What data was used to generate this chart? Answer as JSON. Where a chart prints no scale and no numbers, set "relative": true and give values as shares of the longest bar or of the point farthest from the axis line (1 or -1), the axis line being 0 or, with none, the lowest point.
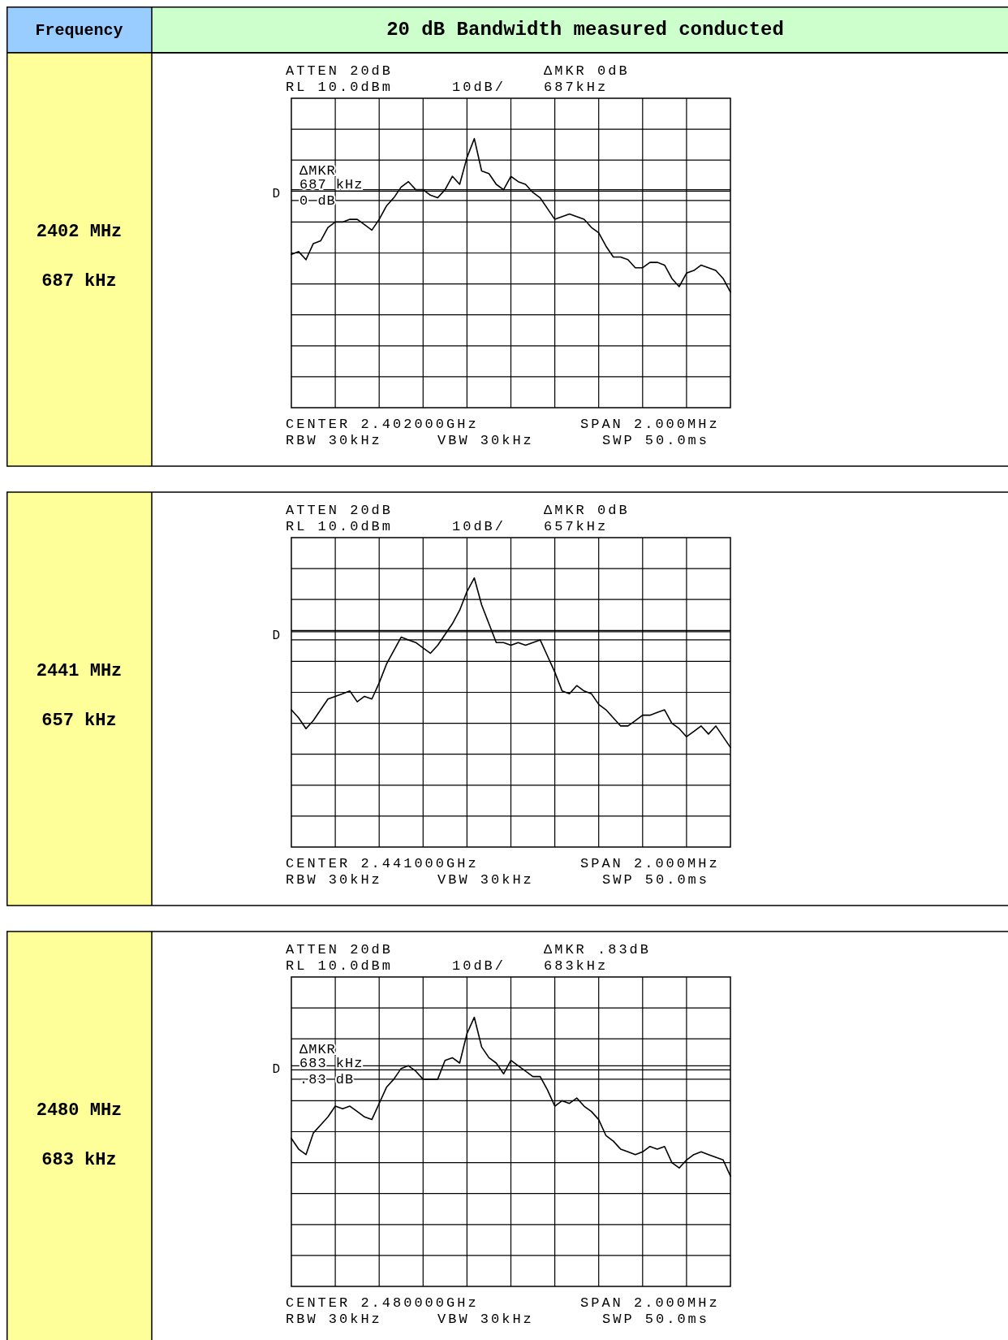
{
  "chart_data": [
    {
      "type": "line",
      "relative": true,
      "grid": true,
      "categories": [
        null,
        null,
        null,
        null,
        null,
        null,
        null,
        null,
        null,
        null,
        null,
        null,
        null,
        null,
        null,
        null,
        null,
        null,
        null,
        null,
        null,
        null,
        null,
        null,
        null,
        null,
        null,
        null,
        null,
        null,
        null,
        null,
        null,
        null,
        null,
        null,
        null,
        null,
        null,
        null,
        null,
        null,
        null,
        null,
        null,
        null,
        null,
        null,
        null,
        null,
        null,
        null,
        null,
        null,
        null,
        null,
        null,
        null,
        null,
        null,
        null
      ],
      "series": [
        {
          "color": "#000000",
          "values": [
            0.57,
            0.58,
            0.55,
            0.61,
            0.62,
            0.67,
            0.69,
            0.69,
            0.7,
            0.7,
            0.68,
            0.66,
            0.7,
            0.75,
            0.78,
            0.82,
            0.84,
            0.81,
            0.81,
            0.79,
            0.78,
            0.81,
            0.86,
            0.83,
            0.93,
            1,
            0.88,
            0.87,
            0.83,
            0.81,
            0.86,
            0.84,
            0.83,
            0.8,
            0.78,
            0.74,
            0.7,
            0.71,
            0.72,
            0.71,
            0.7,
            0.67,
            0.65,
            0.6,
            0.56,
            0.56,
            0.55,
            0.52,
            0.52,
            0.54,
            0.54,
            0.53,
            0.48,
            0.45,
            0.5,
            0.51,
            0.53,
            0.52,
            0.51,
            0.48,
            0.43
          ]
        }
      ],
      "ref_lines": [
        {
          "axis": "y",
          "value": 0.81,
          "label": "D"
        },
        {
          "axis": "y",
          "value": 0.77
        }
      ],
      "annotations": [
        "Frequency",
        "20 dB Bandwidth measured conducted",
        "2402 MHz",
        "687 kHz",
        "ATTEN 20dB",
        "ΔMKR 0dB",
        "RL 10.0dBm",
        "10dB/",
        "687kHz",
        "CENTER 2.402000GHz",
        "SPAN 2.000MHz",
        "RBW 30kHz",
        "VBW 30kHz",
        "SWP 50.0ms",
        "ΔMKR",
        "687 kHz",
        "0 dB"
      ]
    },
    {
      "type": "line",
      "relative": true,
      "grid": true,
      "categories": [
        null,
        null,
        null,
        null,
        null,
        null,
        null,
        null,
        null,
        null,
        null,
        null,
        null,
        null,
        null,
        null,
        null,
        null,
        null,
        null,
        null,
        null,
        null,
        null,
        null,
        null,
        null,
        null,
        null,
        null,
        null,
        null,
        null,
        null,
        null,
        null,
        null,
        null,
        null,
        null,
        null,
        null,
        null,
        null,
        null,
        null,
        null,
        null,
        null,
        null,
        null,
        null,
        null,
        null,
        null,
        null,
        null,
        null,
        null,
        null,
        null
      ],
      "series": [
        {
          "color": "#000000",
          "values": [
            0.51,
            0.48,
            0.44,
            0.47,
            0.51,
            0.55,
            0.56,
            0.57,
            0.58,
            0.54,
            0.56,
            0.55,
            0.61,
            0.68,
            0.73,
            0.78,
            0.77,
            0.76,
            0.74,
            0.72,
            0.75,
            0.79,
            0.83,
            0.88,
            0.95,
            1,
            0.9,
            0.83,
            0.76,
            0.76,
            0.75,
            0.76,
            0.75,
            0.76,
            0.77,
            0.71,
            0.65,
            0.58,
            0.57,
            0.6,
            0.58,
            0.57,
            0.53,
            0.51,
            0.48,
            0.45,
            0.45,
            0.47,
            0.49,
            0.49,
            0.5,
            0.51,
            0.46,
            0.44,
            0.41,
            0.43,
            0.45,
            0.42,
            0.45,
            0.41,
            0.37
          ]
        }
      ],
      "ref_lines": [
        {
          "axis": "y",
          "value": 0.8,
          "label": "D"
        },
        {
          "axis": "y",
          "value": 0.77
        }
      ],
      "annotations": [
        "2441 MHz",
        "657 kHz",
        "ATTEN 20dB",
        "ΔMKR 0dB",
        "RL 10.0dBm",
        "10dB/",
        "657kHz",
        "CENTER 2.441000GHz",
        "SPAN 2.000MHz",
        "RBW 30kHz",
        "VBW 30kHz",
        "SWP 50.0ms"
      ]
    },
    {
      "type": "line",
      "relative": true,
      "grid": true,
      "categories": [
        null,
        null,
        null,
        null,
        null,
        null,
        null,
        null,
        null,
        null,
        null,
        null,
        null,
        null,
        null,
        null,
        null,
        null,
        null,
        null,
        null,
        null,
        null,
        null,
        null,
        null,
        null,
        null,
        null,
        null,
        null,
        null,
        null,
        null,
        null,
        null,
        null,
        null,
        null,
        null,
        null,
        null,
        null,
        null,
        null,
        null,
        null,
        null,
        null,
        null,
        null,
        null,
        null,
        null,
        null,
        null,
        null,
        null,
        null,
        null,
        null
      ],
      "series": [
        {
          "color": "#000000",
          "values": [
            0.55,
            0.51,
            0.49,
            0.57,
            0.6,
            0.63,
            0.67,
            0.66,
            0.67,
            0.65,
            0.63,
            0.62,
            0.68,
            0.74,
            0.77,
            0.81,
            0.82,
            0.8,
            0.77,
            0.77,
            0.77,
            0.84,
            0.85,
            0.83,
            0.94,
            1,
            0.89,
            0.85,
            0.83,
            0.79,
            0.84,
            0.82,
            0.8,
            0.78,
            0.78,
            0.73,
            0.67,
            0.69,
            0.68,
            0.7,
            0.67,
            0.65,
            0.62,
            0.56,
            0.54,
            0.51,
            0.5,
            0.49,
            0.5,
            0.52,
            0.51,
            0.52,
            0.46,
            0.44,
            0.47,
            0.49,
            0.5,
            0.49,
            0.48,
            0.47,
            0.41
          ]
        }
      ],
      "ref_lines": [
        {
          "axis": "y",
          "value": 0.82,
          "label": "D"
        },
        {
          "axis": "y",
          "value": 0.77
        }
      ],
      "annotations": [
        "2480 MHz",
        "683 kHz",
        "ATTEN 20dB",
        "ΔMKR .83dB",
        "RL 10.0dBm",
        "10dB/",
        "683kHz",
        "CENTER 2.480000GHz",
        "SPAN 2.000MHz",
        "RBW 30kHz",
        "VBW 30kHz",
        "SWP 50.0ms",
        "ΔMKR",
        "683 kHz",
        ".83 dB"
      ]
    }
  ]
}
